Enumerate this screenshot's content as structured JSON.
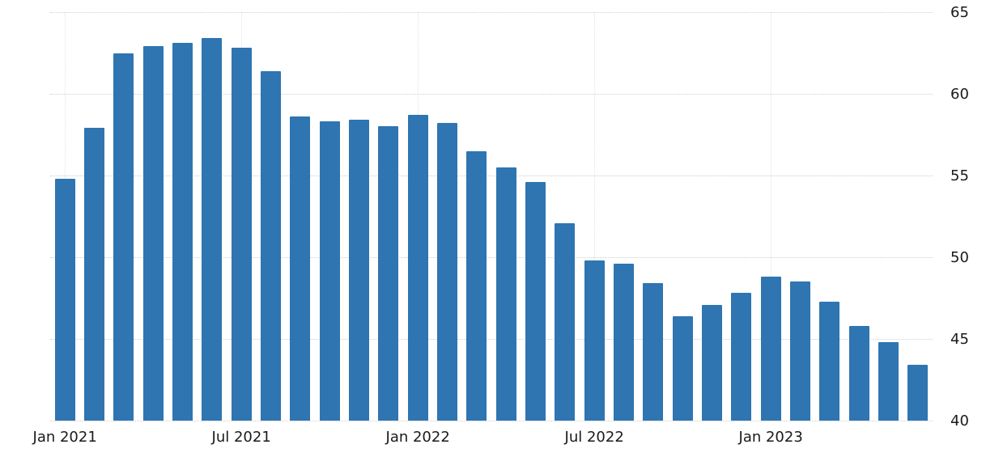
{
  "chart_data": {
    "type": "bar",
    "title": "",
    "xlabel": "",
    "ylabel": "",
    "ylim": [
      40,
      65
    ],
    "y_ticks": [
      40,
      45,
      50,
      55,
      60,
      65
    ],
    "grid": true,
    "legend": "none",
    "bar_color": "#2e75b1",
    "x": [
      "Jan 2021",
      "Feb 2021",
      "Mar 2021",
      "Apr 2021",
      "May 2021",
      "Jun 2021",
      "Jul 2021",
      "Aug 2021",
      "Sep 2021",
      "Oct 2021",
      "Nov 2021",
      "Dec 2021",
      "Jan 2022",
      "Feb 2022",
      "Mar 2022",
      "Apr 2022",
      "May 2022",
      "Jun 2022",
      "Jul 2022",
      "Aug 2022",
      "Sep 2022",
      "Oct 2022",
      "Nov 2022",
      "Dec 2022",
      "Jan 2023",
      "Feb 2023",
      "Mar 2023",
      "Apr 2023",
      "May 2023",
      "Jun 2023"
    ],
    "values": [
      54.8,
      57.9,
      62.5,
      62.9,
      63.1,
      63.4,
      62.8,
      61.4,
      58.6,
      58.3,
      58.4,
      58.0,
      58.7,
      58.2,
      56.5,
      55.5,
      54.6,
      52.1,
      49.8,
      49.6,
      48.4,
      46.4,
      47.1,
      47.8,
      48.8,
      48.5,
      47.3,
      45.8,
      44.8,
      43.4
    ],
    "x_tick_labels": [
      {
        "index": 0,
        "label": "Jan 2021"
      },
      {
        "index": 6,
        "label": "Jul 2021"
      },
      {
        "index": 12,
        "label": "Jan 2022"
      },
      {
        "index": 18,
        "label": "Jul 2022"
      },
      {
        "index": 24,
        "label": "Jan 2023"
      }
    ],
    "y_axis_side": "right"
  }
}
